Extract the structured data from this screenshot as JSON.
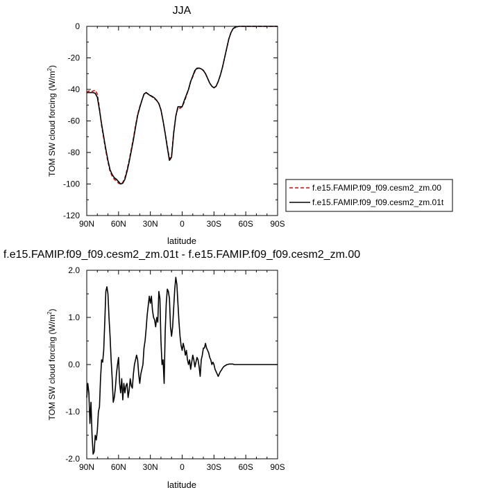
{
  "chart_data": [
    {
      "type": "line",
      "title": "JJA",
      "xlabel": "latitude",
      "ylabel": "TOM SW cloud forcing (W/m",
      "ylabel_sup": "2",
      "ylabel_tail": ")",
      "xlim": [
        90,
        -90
      ],
      "ylim": [
        -120,
        0
      ],
      "x_ticks": [
        90,
        60,
        30,
        0,
        -30,
        -60,
        -90
      ],
      "x_tick_labels": [
        "90N",
        "60N",
        "30N",
        "0",
        "30S",
        "60S",
        "90S"
      ],
      "y_ticks": [
        0,
        -20,
        -40,
        -60,
        -80,
        -100,
        -120
      ],
      "y_tick_labels": [
        "0",
        "-20",
        "-40",
        "-60",
        "-80",
        "-100",
        "-120"
      ],
      "legend_position": "outside-right",
      "series": [
        {
          "name": "f.e15.FAMIP.f09_f09.cesm2_zm.00",
          "color": "#e00000",
          "dash": "dashed",
          "x": [
            90,
            88,
            86,
            84,
            82,
            80,
            78,
            76,
            74,
            72,
            70,
            68,
            66,
            64,
            62,
            60,
            58,
            56,
            54,
            52,
            50,
            48,
            46,
            44,
            42,
            40,
            38,
            36,
            34,
            32,
            30,
            28,
            26,
            24,
            22,
            20,
            18,
            16,
            14,
            12,
            10,
            8,
            6,
            4,
            2,
            0,
            -2,
            -4,
            -6,
            -8,
            -10,
            -12,
            -14,
            -16,
            -18,
            -20,
            -22,
            -24,
            -26,
            -28,
            -30,
            -32,
            -34,
            -36,
            -38,
            -40,
            -42,
            -44,
            -46,
            -48,
            -50,
            -52,
            -54,
            -56,
            -58,
            -60,
            -62,
            -64,
            -66,
            -68,
            -70,
            -72,
            -74,
            -76,
            -78,
            -80,
            -82,
            -84,
            -86,
            -88,
            -90
          ],
          "y": [
            -42,
            -41,
            -41.5,
            -41,
            -40.5,
            -43,
            -52,
            -63,
            -71,
            -79,
            -86,
            -92,
            -95,
            -97,
            -98,
            -99.5,
            -100,
            -99,
            -96,
            -91,
            -85,
            -78,
            -71,
            -63,
            -56,
            -51,
            -47,
            -43,
            -42,
            -43,
            -43.5,
            -45,
            -46,
            -47,
            -49,
            -53,
            -60,
            -68,
            -76,
            -84,
            -82,
            -67,
            -57,
            -51.5,
            -52,
            -51,
            -48,
            -44,
            -40,
            -35,
            -32,
            -28.5,
            -27,
            -26.5,
            -27,
            -28,
            -30,
            -33,
            -36,
            -38,
            -39,
            -38,
            -35,
            -31,
            -26,
            -20,
            -14,
            -8,
            -4,
            -1.5,
            -0.5,
            -0.2,
            0,
            0,
            0,
            0,
            0,
            0,
            0,
            0,
            0,
            0,
            0,
            0,
            0,
            0,
            0,
            0,
            0,
            0,
            0
          ]
        },
        {
          "name": "f.e15.FAMIP.f09_f09.cesm2_zm.01t",
          "color": "#000000",
          "dash": "solid",
          "x": [
            90,
            88,
            86,
            84,
            82,
            80,
            78,
            76,
            74,
            72,
            70,
            68,
            66,
            64,
            62,
            60,
            58,
            56,
            54,
            52,
            50,
            48,
            46,
            44,
            42,
            40,
            38,
            36,
            34,
            32,
            30,
            28,
            26,
            24,
            22,
            20,
            18,
            16,
            14,
            12,
            10,
            8,
            6,
            4,
            2,
            0,
            -2,
            -4,
            -6,
            -8,
            -10,
            -12,
            -14,
            -16,
            -18,
            -20,
            -22,
            -24,
            -26,
            -28,
            -30,
            -32,
            -34,
            -36,
            -38,
            -40,
            -42,
            -44,
            -46,
            -48,
            -50,
            -52,
            -54,
            -56,
            -58,
            -60,
            -62,
            -64,
            -66,
            -68,
            -70,
            -72,
            -74,
            -76,
            -78,
            -80,
            -82,
            -84,
            -86,
            -88,
            -90
          ],
          "y": [
            -42,
            -42,
            -42,
            -42,
            -42.5,
            -45,
            -53,
            -62,
            -70,
            -78,
            -85,
            -91,
            -94,
            -96,
            -97,
            -98.5,
            -100,
            -99.5,
            -97,
            -92,
            -86,
            -79,
            -72,
            -64,
            -56.5,
            -51.5,
            -47,
            -43,
            -42,
            -43,
            -44,
            -44.5,
            -45.5,
            -47,
            -49,
            -53,
            -60,
            -68,
            -77,
            -85,
            -83,
            -68,
            -57,
            -51,
            -51,
            -51,
            -47,
            -43.5,
            -40,
            -35,
            -31.5,
            -28,
            -26.5,
            -26.5,
            -27,
            -28,
            -30,
            -33,
            -36,
            -38,
            -39,
            -38,
            -35,
            -31,
            -26,
            -20,
            -14,
            -8,
            -4,
            -1.5,
            -0.5,
            -0.2,
            0,
            0,
            0,
            0,
            0,
            0,
            0,
            0,
            0,
            0,
            0,
            0,
            0,
            0,
            0,
            0,
            0,
            0,
            0
          ]
        }
      ]
    },
    {
      "type": "line",
      "title": "f.e15.FAMIP.f09_f09.cesm2_zm.01t - f.e15.FAMIP.f09_f09.cesm2_zm.00",
      "xlabel": "latitude",
      "ylabel": "TOM SW cloud forcing (W/m",
      "ylabel_sup": "2",
      "ylabel_tail": ")",
      "xlim": [
        90,
        -90
      ],
      "ylim": [
        -2.0,
        2.0
      ],
      "x_ticks": [
        90,
        60,
        30,
        0,
        -30,
        -60,
        -90
      ],
      "x_tick_labels": [
        "90N",
        "60N",
        "30N",
        "0",
        "30S",
        "60S",
        "90S"
      ],
      "y_ticks": [
        2.0,
        1.0,
        0.0,
        -1.0,
        -2.0
      ],
      "y_tick_labels": [
        "2.0",
        "1.0",
        "0.0",
        "-1.0",
        "-2.0"
      ],
      "series": [
        {
          "color": "#000000",
          "dash": "solid",
          "x": [
            90,
            89,
            88,
            87,
            86,
            85,
            84,
            83,
            82,
            81,
            80,
            79,
            78,
            77,
            76,
            75,
            74,
            73,
            72,
            71,
            70,
            69,
            68,
            67,
            66,
            65,
            64,
            63,
            62,
            61,
            60,
            59,
            58,
            57,
            56,
            55,
            54,
            53,
            52,
            51,
            50,
            49,
            48,
            47,
            46,
            45,
            44,
            43,
            42,
            41,
            40,
            39,
            38,
            37,
            36,
            35,
            34,
            33,
            32,
            31,
            30,
            29,
            28,
            27,
            26,
            25,
            24,
            23,
            22,
            21,
            20,
            19,
            18,
            17,
            16,
            15,
            14,
            13,
            12,
            11,
            10,
            9,
            8,
            7,
            6,
            5,
            4,
            3,
            2,
            1,
            0,
            -1,
            -2,
            -3,
            -4,
            -5,
            -6,
            -7,
            -8,
            -9,
            -10,
            -11,
            -12,
            -13,
            -14,
            -15,
            -16,
            -17,
            -18,
            -19,
            -20,
            -21,
            -22,
            -23,
            -24,
            -25,
            -26,
            -27,
            -28,
            -29,
            -30,
            -31,
            -32,
            -33,
            -34,
            -35,
            -36,
            -37,
            -38,
            -39,
            -40,
            -41,
            -42,
            -43,
            -44,
            -45,
            -46,
            -47,
            -48,
            -49,
            -50,
            -51,
            -52,
            -53,
            -54,
            -55,
            -56,
            -57,
            -58,
            -60,
            -62,
            -64,
            -66,
            -68,
            -70,
            -75,
            -80,
            -90
          ],
          "y": [
            -0.7,
            -0.4,
            -0.6,
            -1.25,
            -0.8,
            -1.5,
            -1.9,
            -1.85,
            -1.5,
            -1.6,
            -1.4,
            -1.0,
            -0.9,
            -0.3,
            0.1,
            0.05,
            0.3,
            0.9,
            1.55,
            1.65,
            1.5,
            1.0,
            0.6,
            0.1,
            -0.3,
            -0.8,
            -0.7,
            -0.5,
            -0.2,
            0.0,
            0.15,
            -0.4,
            -0.6,
            -0.3,
            -0.75,
            -0.4,
            -0.6,
            -0.45,
            -0.4,
            -0.7,
            -0.55,
            -0.3,
            -0.45,
            -0.5,
            -0.2,
            0.0,
            0.1,
            0.2,
            0.1,
            -0.2,
            -0.4,
            -0.2,
            -0.1,
            0.0,
            0.35,
            0.5,
            0.75,
            1.05,
            1.25,
            1.45,
            1.3,
            1.45,
            1.15,
            1.0,
            0.95,
            0.8,
            1.0,
            0.9,
            1.55,
            1.4,
            0.5,
            0.0,
            0.1,
            -0.4,
            0.7,
            1.3,
            1.6,
            1.55,
            1.4,
            0.8,
            0.6,
            0.8,
            1.2,
            1.6,
            1.85,
            1.7,
            1.3,
            0.9,
            0.6,
            0.4,
            0.3,
            0.45,
            0.35,
            0.2,
            0.3,
            0.1,
            0.0,
            0.1,
            -0.1,
            0.05,
            0.2,
            0.1,
            -0.05,
            0.05,
            0.15,
            0.1,
            -0.05,
            -0.25,
            0.1,
            0.2,
            0.35,
            0.35,
            0.45,
            0.35,
            0.3,
            0.25,
            0.15,
            0.1,
            0.0,
            0.05,
            0.0,
            -0.1,
            -0.15,
            -0.2,
            -0.25,
            -0.2,
            -0.15,
            -0.12,
            -0.08,
            -0.05,
            -0.03,
            -0.02,
            0.0,
            0.0,
            0.01,
            0.01,
            0.01,
            0.01,
            0.01,
            0.0,
            0.0,
            0.0,
            0.0,
            0.0,
            0.0,
            0.0,
            0.0,
            0.0,
            0.0,
            0.0,
            0.0,
            0.0,
            0.0,
            0.0,
            0.0,
            0.0,
            0.0,
            0.0
          ]
        }
      ]
    }
  ]
}
